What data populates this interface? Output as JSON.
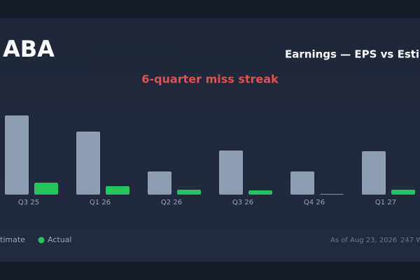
{
  "chart_data": {
    "type": "bar",
    "ticker": "ABA",
    "title": "Earnings — EPS vs Estim",
    "annotation": "6-quarter miss streak",
    "categories": [
      "Q3 25",
      "Q1 26",
      "Q2 26",
      "Q3 26",
      "Q4 26",
      "Q1 27"
    ],
    "series": [
      {
        "name": "timate",
        "color": "#95a3b8",
        "values": [
          1.13,
          0.9,
          0.33,
          0.63,
          0.33,
          0.62
        ]
      },
      {
        "name": "Actual",
        "color": "#22c55e",
        "values": [
          0.17,
          0.12,
          0.07,
          0.06,
          0.01,
          0.07
        ]
      }
    ],
    "ylim": [
      0,
      1.2
    ],
    "footer": {
      "as_of": "As of Aug 23, 2026",
      "count": "247 W"
    }
  }
}
